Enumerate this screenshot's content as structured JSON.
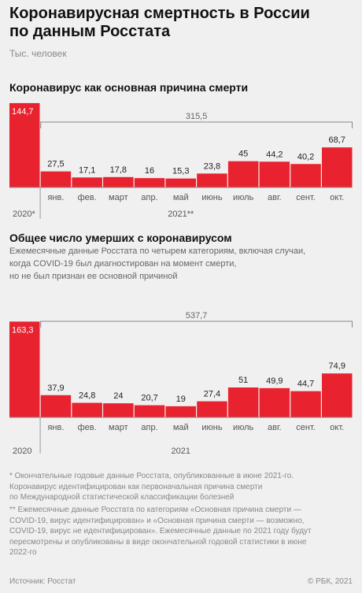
{
  "title": "Коронавирусная смертность в России\nпо данным Росстата",
  "unit": "Тыс. человек",
  "colors": {
    "bar": "#e8232f",
    "background": "#f0f0f0"
  },
  "chart_data": [
    {
      "type": "bar",
      "title": "Коронавирус как основная причина смерти",
      "categories": [
        "",
        "янв.",
        "фев.",
        "март",
        "апр.",
        "май",
        "июнь",
        "июль",
        "авг.",
        "сент.",
        "окт."
      ],
      "values": [
        144.7,
        27.5,
        17.1,
        17.8,
        16,
        15.3,
        23.8,
        45,
        44.2,
        40.2,
        68.7
      ],
      "value_labels": [
        "144,7",
        "27,5",
        "17,1",
        "17,8",
        "16",
        "15,3",
        "23,8",
        "45",
        "44,2",
        "40,2",
        "68,7"
      ],
      "year_labels": [
        "2020*",
        "2021**"
      ],
      "total_label": "315,5",
      "total_value": 315.5
    },
    {
      "type": "bar",
      "title": "Общее число умерших с коронавирусом",
      "description": "Ежемесячные данные Росстата по четырем категориям, включая случаи,\nкогда COVID-19 был диагностирован на момент смерти,\nно не был признан ее основной причиной",
      "categories": [
        "",
        "янв.",
        "фев.",
        "март",
        "апр.",
        "май",
        "июнь",
        "июль",
        "авг.",
        "сент.",
        "окт."
      ],
      "values": [
        163.3,
        37.9,
        24.8,
        24,
        20.7,
        19,
        27.4,
        51,
        49.9,
        44.7,
        74.9
      ],
      "value_labels": [
        "163,3",
        "37,9",
        "24,8",
        "24",
        "20,7",
        "19",
        "27,4",
        "51",
        "49,9",
        "44,7",
        "74,9"
      ],
      "year_labels": [
        "2020",
        "2021"
      ],
      "total_label": "537,7",
      "total_value": 537.7
    }
  ],
  "footnotes": [
    "* Окончательные годовые данные Росстата, опубликованные в июне 2021-го.\nКоронавирус идентифицирован как первоначальная причина смерти\nпо Международной статистической классификации болезней",
    "** Ежемесячные данные Росстата по категориям «Основная причина смерти —\nCOVID-19, вирус идентифицирован» и «Основная причина смерти  — возможно,\nCOVID-19, вирус не идентифицирован». Ежемесячные данные по 2021 году будут\nпересмотрены и опубликованы в виде окончательной годовой статистики в июне\n2022-го"
  ],
  "source": "Источник: Росстат",
  "copyright": "© РБК, 2021"
}
